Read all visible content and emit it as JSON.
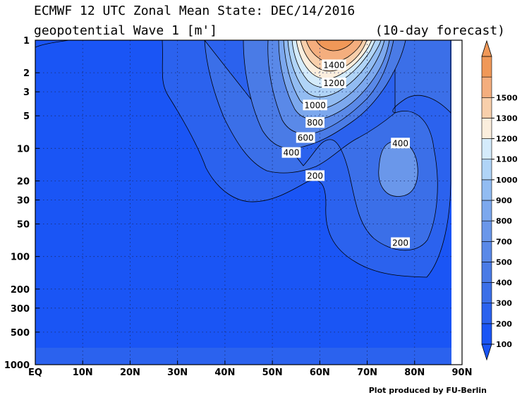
{
  "title_line1": "ECMWF 12 UTC Zonal Mean State: DEC/14/2016",
  "title_line2": "geopotential Wave 1 [m']",
  "forecast_label": "(10-day forecast)",
  "credit": "Plot produced by FU-Berlin",
  "chart_data": {
    "type": "contour",
    "variable": "geopotential Wave 1 amplitude",
    "units": "m'",
    "x_axis": {
      "ticks": [
        "EQ",
        "10N",
        "20N",
        "30N",
        "40N",
        "50N",
        "60N",
        "70N",
        "80N",
        "90N"
      ],
      "range": [
        0,
        90
      ],
      "unit": "degrees latitude"
    },
    "y_axis": {
      "ticks": [
        1,
        2,
        3,
        5,
        10,
        20,
        30,
        50,
        100,
        200,
        300,
        500,
        1000
      ],
      "range": [
        1000,
        1
      ],
      "scale": "log",
      "unit": "hPa"
    },
    "grid": "dotted",
    "colorbar": {
      "levels": [
        100,
        200,
        300,
        400,
        500,
        700,
        800,
        900,
        1000,
        1100,
        1200,
        1300,
        1500
      ],
      "colors": [
        "#1a55f5",
        "#2b62ee",
        "#3b6fe8",
        "#4a7be6",
        "#5a89e8",
        "#6a97ea",
        "#7ca8ee",
        "#92bcf2",
        "#b0d4f7",
        "#d4ebfb",
        "#fbeedd",
        "#f8cfab",
        "#f4ae7e",
        "#f09858"
      ],
      "placement": "right"
    },
    "contour_labels": [
      {
        "value": "1400",
        "lat": 63,
        "p": 1.7
      },
      {
        "value": "1200",
        "lat": 63,
        "p": 2.5
      },
      {
        "value": "1000",
        "lat": 59,
        "p": 4.0
      },
      {
        "value": "800",
        "lat": 59,
        "p": 5.8
      },
      {
        "value": "600",
        "lat": 57,
        "p": 8.0
      },
      {
        "value": "400",
        "lat": 54,
        "p": 11
      },
      {
        "value": "200",
        "lat": 59,
        "p": 18
      },
      {
        "value": "400",
        "lat": 77,
        "p": 9
      },
      {
        "value": "200",
        "lat": 77,
        "p": 75
      }
    ]
  }
}
